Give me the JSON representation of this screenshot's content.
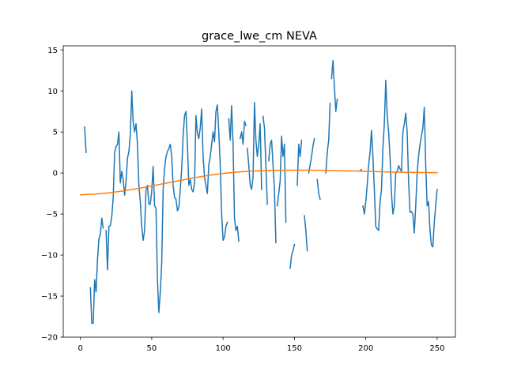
{
  "chart_data": {
    "type": "line",
    "title": "grace_lwe_cm NEVA",
    "xlabel": "",
    "ylabel": "",
    "xlim": [
      -12,
      262.8
    ],
    "ylim": [
      -20,
      15.5
    ],
    "xticks": [
      0,
      50,
      100,
      150,
      200,
      250
    ],
    "yticks": [
      -20,
      -15,
      -10,
      -5,
      0,
      5,
      10,
      15
    ],
    "grid": false,
    "series": [
      {
        "color": "#1f77b4",
        "points": [
          [
            3,
            5.6
          ],
          [
            4,
            2.5
          ],
          [
            7,
            -14.0
          ],
          [
            8,
            -18.3
          ],
          [
            9,
            -18.3
          ],
          [
            10,
            -13.0
          ],
          [
            11,
            -14.5
          ],
          [
            12,
            -10.5
          ],
          [
            13,
            -8.0
          ],
          [
            14,
            -7.5
          ],
          [
            15,
            -5.5
          ],
          [
            16,
            -6.7
          ],
          [
            18,
            -7.0
          ],
          [
            19,
            -11.8
          ],
          [
            20,
            -6.5
          ],
          [
            21,
            -6.4
          ],
          [
            22,
            -5.3
          ],
          [
            23,
            -3.0
          ],
          [
            24,
            2.5
          ],
          [
            25,
            3.2
          ],
          [
            26,
            3.5
          ],
          [
            27,
            5.0
          ],
          [
            28,
            -1.2
          ],
          [
            29,
            0.2
          ],
          [
            30,
            -0.8
          ],
          [
            31,
            -2.7
          ],
          [
            32,
            -1.0
          ],
          [
            33,
            1.8
          ],
          [
            34,
            2.6
          ],
          [
            35,
            4.7
          ],
          [
            36,
            10.0
          ],
          [
            37,
            6.2
          ],
          [
            38,
            5.0
          ],
          [
            39,
            6.0
          ],
          [
            40,
            3.5
          ],
          [
            41,
            -1.5
          ],
          [
            42,
            -3.5
          ],
          [
            43,
            -6.5
          ],
          [
            44,
            -8.2
          ],
          [
            45,
            -7.0
          ],
          [
            46,
            -2.0
          ],
          [
            47,
            -1.5
          ],
          [
            48,
            -3.8
          ],
          [
            49,
            -3.8
          ],
          [
            50,
            -2.2
          ],
          [
            51,
            0.8
          ],
          [
            52,
            -4.0
          ],
          [
            53,
            -4.3
          ],
          [
            54,
            -13.0
          ],
          [
            55,
            -17.0
          ],
          [
            56,
            -14.5
          ],
          [
            57,
            -11.0
          ],
          [
            58,
            -2.0
          ],
          [
            59,
            0.5
          ],
          [
            60,
            2.0
          ],
          [
            61,
            2.6
          ],
          [
            62,
            3.0
          ],
          [
            63,
            3.5
          ],
          [
            64,
            2.0
          ],
          [
            65,
            -1.5
          ],
          [
            66,
            -3.0
          ],
          [
            67,
            -3.2
          ],
          [
            68,
            -4.6
          ],
          [
            69,
            -4.2
          ],
          [
            70,
            -2.0
          ],
          [
            71,
            0.5
          ],
          [
            72,
            4.5
          ],
          [
            73,
            7.0
          ],
          [
            74,
            7.5
          ],
          [
            75,
            3.5
          ],
          [
            76,
            -1.5
          ],
          [
            77,
            -0.8
          ],
          [
            78,
            -2.0
          ],
          [
            79,
            -2.3
          ],
          [
            80,
            -1.2
          ],
          [
            81,
            7.0
          ],
          [
            82,
            4.8
          ],
          [
            83,
            4.2
          ],
          [
            84,
            5.5
          ],
          [
            85,
            7.8
          ],
          [
            86,
            2.0
          ],
          [
            87,
            -0.5
          ],
          [
            88,
            -1.5
          ],
          [
            89,
            -2.5
          ],
          [
            90,
            1.0
          ],
          [
            91,
            2.0
          ],
          [
            92,
            3.5
          ],
          [
            93,
            5.0
          ],
          [
            94,
            3.8
          ],
          [
            95,
            7.5
          ],
          [
            96,
            8.3
          ],
          [
            97,
            5.0
          ],
          [
            98,
            1.0
          ],
          [
            99,
            -5.0
          ],
          [
            100,
            -8.2
          ],
          [
            101,
            -7.8
          ],
          [
            102,
            -6.5
          ],
          [
            103,
            -6.0
          ],
          [
            104,
            6.6
          ],
          [
            105,
            4.0
          ],
          [
            106,
            8.2
          ],
          [
            107,
            3.5
          ],
          [
            108,
            -5.5
          ],
          [
            109,
            -7.0
          ],
          [
            110,
            -6.5
          ],
          [
            111,
            -8.3
          ],
          [
            112,
            4.2
          ],
          [
            113,
            5.0
          ],
          [
            114,
            3.5
          ],
          [
            115,
            6.3
          ],
          [
            116,
            5.8
          ],
          [
            117,
            3.0
          ],
          [
            118,
            1.0
          ],
          [
            119,
            -1.5
          ],
          [
            120,
            -2.0
          ],
          [
            121,
            -0.5
          ],
          [
            122,
            8.6
          ],
          [
            123,
            4.0
          ],
          [
            124,
            2.0
          ],
          [
            125,
            3.5
          ],
          [
            126,
            6.0
          ],
          [
            127,
            -2.0
          ],
          [
            128,
            6.9
          ],
          [
            129,
            5.5
          ],
          [
            130,
            1.0
          ],
          [
            131,
            -3.8
          ],
          [
            132,
            1.5
          ],
          [
            133,
            3.5
          ],
          [
            134,
            4.0
          ],
          [
            135,
            1.0
          ],
          [
            136,
            -2.0
          ],
          [
            137,
            -8.5
          ],
          [
            138,
            -4.0
          ],
          [
            139,
            -2.5
          ],
          [
            140,
            -1.0
          ],
          [
            141,
            4.5
          ],
          [
            142,
            2.0
          ],
          [
            143,
            3.5
          ],
          [
            144,
            -6.0
          ],
          [
            147,
            -11.6
          ],
          [
            148,
            -10.0
          ],
          [
            149,
            -9.5
          ],
          [
            150,
            -8.7
          ],
          [
            152,
            -1.5
          ],
          [
            153,
            3.5
          ],
          [
            154,
            2.0
          ],
          [
            155,
            4.0
          ],
          [
            157,
            -5.2
          ],
          [
            158,
            -7.0
          ],
          [
            159,
            -9.5
          ],
          [
            160,
            0.0
          ],
          [
            161,
            1.0
          ],
          [
            162,
            2.0
          ],
          [
            163,
            3.3
          ],
          [
            164,
            4.2
          ],
          [
            166,
            -0.8
          ],
          [
            167,
            -2.5
          ],
          [
            168,
            -3.2
          ],
          [
            172,
            0.0
          ],
          [
            173,
            2.5
          ],
          [
            174,
            4.0
          ],
          [
            175,
            8.5
          ],
          [
            176,
            11.5
          ],
          [
            177,
            13.7
          ],
          [
            178,
            10.5
          ],
          [
            179,
            7.5
          ],
          [
            180,
            9.0
          ],
          [
            196,
            0.3
          ],
          [
            197,
            0.4
          ],
          [
            198,
            -4.0
          ],
          [
            199,
            -5.0
          ],
          [
            200,
            -3.5
          ],
          [
            201,
            -1.5
          ],
          [
            202,
            1.0
          ],
          [
            203,
            2.5
          ],
          [
            204,
            5.2
          ],
          [
            205,
            2.0
          ],
          [
            206,
            -2.0
          ],
          [
            207,
            -6.5
          ],
          [
            208,
            -6.8
          ],
          [
            209,
            -7.0
          ],
          [
            210,
            -3.5
          ],
          [
            211,
            -2.0
          ],
          [
            212,
            3.0
          ],
          [
            213,
            6.0
          ],
          [
            214,
            11.3
          ],
          [
            215,
            7.0
          ],
          [
            216,
            5.0
          ],
          [
            217,
            2.0
          ],
          [
            218,
            -2.5
          ],
          [
            219,
            -5.0
          ],
          [
            220,
            -4.0
          ],
          [
            221,
            0.0
          ],
          [
            222,
            0.2
          ],
          [
            223,
            0.9
          ],
          [
            224,
            0.5
          ],
          [
            225,
            0.2
          ],
          [
            226,
            5.0
          ],
          [
            227,
            6.0
          ],
          [
            228,
            7.3
          ],
          [
            229,
            5.0
          ],
          [
            230,
            -1.0
          ],
          [
            231,
            -4.8
          ],
          [
            232,
            -4.7
          ],
          [
            233,
            -5.0
          ],
          [
            234,
            -7.3
          ],
          [
            235,
            -4.0
          ],
          [
            236,
            0.0
          ],
          [
            237,
            2.0
          ],
          [
            238,
            3.5
          ],
          [
            239,
            4.5
          ],
          [
            240,
            5.5
          ],
          [
            241,
            8.0
          ],
          [
            242,
            1.0
          ],
          [
            243,
            -4.0
          ],
          [
            244,
            -3.5
          ],
          [
            245,
            -7.0
          ],
          [
            246,
            -8.8
          ],
          [
            247,
            -9.0
          ],
          [
            248,
            -6.0
          ],
          [
            249,
            -4.0
          ],
          [
            250,
            -2.0
          ]
        ],
        "breaks_after": [
          4,
          16,
          103,
          111,
          116,
          127,
          131,
          137,
          144,
          150,
          155,
          159,
          164,
          168,
          175,
          180,
          197
        ]
      },
      {
        "color": "#ff7f0e",
        "points": [
          [
            0,
            -2.65
          ],
          [
            10,
            -2.58
          ],
          [
            20,
            -2.42
          ],
          [
            30,
            -2.18
          ],
          [
            40,
            -1.9
          ],
          [
            50,
            -1.58
          ],
          [
            60,
            -1.24
          ],
          [
            70,
            -0.9
          ],
          [
            80,
            -0.57
          ],
          [
            90,
            -0.28
          ],
          [
            100,
            -0.05
          ],
          [
            110,
            0.12
          ],
          [
            120,
            0.23
          ],
          [
            130,
            0.3
          ],
          [
            140,
            0.34
          ],
          [
            150,
            0.35
          ],
          [
            160,
            0.35
          ],
          [
            170,
            0.32
          ],
          [
            180,
            0.29
          ],
          [
            190,
            0.25
          ],
          [
            200,
            0.2
          ],
          [
            210,
            0.15
          ],
          [
            220,
            0.11
          ],
          [
            230,
            0.08
          ],
          [
            240,
            0.06
          ],
          [
            250,
            0.05
          ]
        ]
      }
    ]
  }
}
